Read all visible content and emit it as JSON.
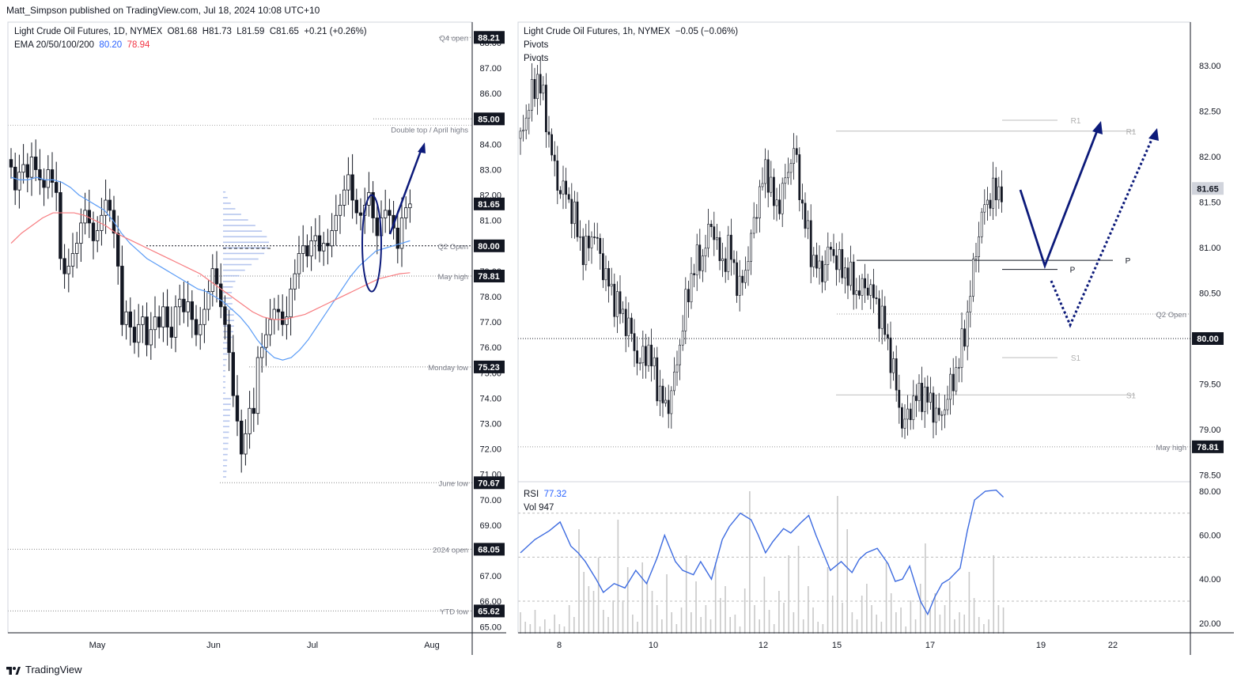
{
  "header": {
    "publisher_line": "Matt_Simpson published on TradingView.com, Jul 18, 2024 10:08 UTC+10"
  },
  "footer": {
    "brand": "TradingView"
  },
  "colors": {
    "up": "#131722",
    "down": "#131722",
    "ema20": "#5b9cf6",
    "ema50": "#f77c80",
    "annotation": "#0c1a7a",
    "rsi": "#3d6be0",
    "volume": "#c8c8c8",
    "volume_profile": "#9db3e8",
    "label_bg": "#131722"
  },
  "chart_data": [
    {
      "type": "candlestick",
      "title": "Light Crude Oil Futures, 1D, NYMEX",
      "ohlc_text": {
        "o": "O81.68",
        "h": "H81.73",
        "l": "L81.59",
        "c": "C81.65",
        "chg": "+0.21 (+0.26%)"
      },
      "indicator_text": {
        "name": "EMA 20/50/100/200",
        "ema20": "80.20",
        "ema50": "78.94"
      },
      "x_ticks": [
        "May",
        "Jun",
        "Jul",
        "Aug"
      ],
      "y_ticks": [
        "88.00",
        "87.00",
        "86.00",
        "85.00",
        "84.00",
        "83.00",
        "82.00",
        "81.00",
        "80.00",
        "79.00",
        "78.00",
        "77.00",
        "76.00",
        "75.00",
        "74.00",
        "73.00",
        "72.00",
        "71.00",
        "70.00",
        "69.00",
        "68.00",
        "67.00",
        "66.00",
        "65.00"
      ],
      "ylim": [
        64.7,
        88.8
      ],
      "close": [
        83.1,
        82.2,
        82.9,
        83.2,
        82.7,
        83.5,
        83.0,
        82.6,
        82.3,
        83.0,
        82.5,
        82.1,
        79.5,
        78.9,
        79.2,
        79.7,
        80.1,
        80.9,
        81.4,
        80.9,
        80.2,
        80.6,
        81.2,
        81.8,
        81.4,
        80.5,
        79.2,
        76.9,
        77.4,
        76.8,
        76.2,
        76.9,
        77.2,
        76.1,
        76.7,
        77.2,
        76.8,
        77.6,
        76.8,
        76.4,
        77.6,
        77.9,
        77.4,
        77.8,
        77.1,
        76.5,
        76.9,
        77.5,
        78.2,
        79.1,
        78.5,
        77.6,
        76.9,
        75.8,
        74.1,
        73.1,
        71.8,
        72.6,
        73.6,
        73.4,
        75.6,
        76.0,
        76.5,
        77.1,
        77.5,
        77.4,
        76.9,
        77.2,
        78.3,
        78.9,
        79.7,
        80.0,
        79.6,
        80.2,
        80.4,
        79.8,
        80.1,
        80.0,
        80.6,
        81.2,
        81.6,
        82.2,
        82.8,
        81.8,
        81.3,
        81.2,
        81.6,
        82.1,
        81.1,
        80.4,
        81.1,
        81.4,
        81.2,
        80.7,
        79.9,
        81.1,
        81.5,
        81.65
      ],
      "ema20": [
        82.7,
        82.6,
        82.6,
        82.7,
        82.6,
        82.6,
        82.5,
        82.3,
        82.0,
        81.8,
        81.6,
        81.4,
        81.0,
        80.5,
        80.1,
        79.8,
        79.5,
        79.3,
        79.1,
        78.9,
        78.7,
        78.5,
        78.3,
        78.2,
        78.0,
        77.8,
        77.5,
        77.2,
        76.8,
        76.3,
        75.9,
        75.6,
        75.5,
        75.6,
        75.9,
        76.3,
        76.8,
        77.3,
        77.8,
        78.3,
        78.8,
        79.2,
        79.5,
        79.8,
        79.9,
        80.0,
        80.1,
        80.2
      ],
      "ema50": [
        80.1,
        80.5,
        80.8,
        81.1,
        81.3,
        81.3,
        81.3,
        81.2,
        81.0,
        80.8,
        80.5,
        80.3,
        80.1,
        79.9,
        79.7,
        79.5,
        79.3,
        79.1,
        78.9,
        78.6,
        78.3,
        78.0,
        77.7,
        77.4,
        77.2,
        77.1,
        77.1,
        77.2,
        77.3,
        77.5,
        77.7,
        77.9,
        78.1,
        78.3,
        78.5,
        78.7,
        78.8,
        78.9,
        78.94
      ],
      "levels": [
        {
          "label": "Q4 open",
          "value": "88.21"
        },
        {
          "label": "Double top / April highs",
          "value": "85.00"
        },
        {
          "label": "",
          "value": "81.65"
        },
        {
          "label": "Q2 Open",
          "value": "80.00"
        },
        {
          "label": "May high",
          "value": "78.81"
        },
        {
          "label": "Monday low",
          "value": "75.23"
        },
        {
          "label": "June low",
          "value": "70.67"
        },
        {
          "label": "2024 open",
          "value": "68.05"
        },
        {
          "label": "YTD low",
          "value": "65.62"
        }
      ]
    },
    {
      "type": "candlestick",
      "title": "Light Crude Oil Futures, 1h, NYMEX",
      "change_text": "−0.05 (−0.06%)",
      "indicator_labels": [
        "Pivots",
        "Pivots"
      ],
      "x_ticks": [
        "8",
        "10",
        "12",
        "15",
        "17",
        "19",
        "22"
      ],
      "y_ticks": [
        "83.00",
        "82.50",
        "82.00",
        "81.50",
        "81.00",
        "80.50",
        "80.00",
        "79.50",
        "79.00",
        "78.50"
      ],
      "ylim": [
        78.45,
        83.5
      ],
      "path": [
        [
          0,
          82.2
        ],
        [
          4,
          82.6
        ],
        [
          8,
          82.9
        ],
        [
          12,
          82.3
        ],
        [
          16,
          81.7
        ],
        [
          20,
          81.6
        ],
        [
          24,
          81.3
        ],
        [
          28,
          80.9
        ],
        [
          32,
          81.2
        ],
        [
          36,
          80.8
        ],
        [
          40,
          80.5
        ],
        [
          44,
          80.3
        ],
        [
          48,
          80.1
        ],
        [
          52,
          79.7
        ],
        [
          56,
          79.9
        ],
        [
          60,
          79.5
        ],
        [
          64,
          79.2
        ],
        [
          68,
          79.6
        ],
        [
          72,
          80.3
        ],
        [
          76,
          80.8
        ],
        [
          80,
          80.9
        ],
        [
          84,
          81.3
        ],
        [
          88,
          80.8
        ],
        [
          92,
          81.0
        ],
        [
          96,
          80.5
        ],
        [
          100,
          80.9
        ],
        [
          104,
          81.5
        ],
        [
          108,
          81.9
        ],
        [
          112,
          81.4
        ],
        [
          116,
          81.7
        ],
        [
          120,
          82.1
        ],
        [
          124,
          81.4
        ],
        [
          128,
          80.9
        ],
        [
          132,
          80.7
        ],
        [
          136,
          81.0
        ],
        [
          140,
          80.8
        ],
        [
          144,
          80.7
        ],
        [
          148,
          80.5
        ],
        [
          152,
          80.6
        ],
        [
          156,
          80.4
        ],
        [
          160,
          80.1
        ],
        [
          164,
          79.6
        ],
        [
          168,
          79.0
        ],
        [
          172,
          79.3
        ],
        [
          176,
          79.4
        ],
        [
          180,
          79.3
        ],
        [
          184,
          79.1
        ],
        [
          188,
          79.4
        ],
        [
          192,
          79.7
        ],
        [
          196,
          80.2
        ],
        [
          200,
          81.0
        ],
        [
          204,
          81.5
        ],
        [
          208,
          81.6
        ],
        [
          212,
          81.65
        ]
      ],
      "pivots": [
        {
          "label": "R1",
          "value": 82.4
        },
        {
          "label": "R1",
          "value": 82.28
        },
        {
          "label": "P",
          "value": 80.86
        },
        {
          "label": "P",
          "value": 80.76
        },
        {
          "label": "S1",
          "value": 79.79
        },
        {
          "label": "S1",
          "value": 79.38
        }
      ],
      "levels": [
        {
          "label": "",
          "value": "81.65"
        },
        {
          "label": "Q2 Open",
          "value": "80.00"
        },
        {
          "label": "May high",
          "value": "78.81"
        }
      ]
    },
    {
      "type": "line",
      "title": "RSI",
      "rsi_text": "77.32",
      "vol_text": "Vol  947",
      "y_ticks": [
        "80.00",
        "60.00",
        "40.00",
        "20.00"
      ],
      "ylim": [
        15,
        82
      ],
      "rsi": [
        [
          0,
          52
        ],
        [
          8,
          58
        ],
        [
          16,
          62
        ],
        [
          22,
          66
        ],
        [
          28,
          55
        ],
        [
          32,
          52
        ],
        [
          36,
          48
        ],
        [
          42,
          40
        ],
        [
          46,
          34
        ],
        [
          52,
          38
        ],
        [
          58,
          36
        ],
        [
          64,
          44
        ],
        [
          70,
          38
        ],
        [
          76,
          50
        ],
        [
          80,
          60
        ],
        [
          86,
          48
        ],
        [
          90,
          44
        ],
        [
          96,
          42
        ],
        [
          100,
          48
        ],
        [
          106,
          40
        ],
        [
          112,
          58
        ],
        [
          116,
          64
        ],
        [
          122,
          70
        ],
        [
          128,
          67
        ],
        [
          132,
          60
        ],
        [
          136,
          52
        ],
        [
          140,
          57
        ],
        [
          146,
          63
        ],
        [
          150,
          61
        ],
        [
          156,
          66
        ],
        [
          160,
          69
        ],
        [
          164,
          60
        ],
        [
          168,
          52
        ],
        [
          172,
          44
        ],
        [
          178,
          48
        ],
        [
          184,
          43
        ],
        [
          188,
          49
        ],
        [
          192,
          52
        ],
        [
          198,
          54
        ],
        [
          204,
          47
        ],
        [
          208,
          39
        ],
        [
          212,
          40
        ],
        [
          216,
          46
        ],
        [
          222,
          30
        ],
        [
          226,
          24
        ],
        [
          230,
          32
        ],
        [
          234,
          38
        ],
        [
          238,
          40
        ],
        [
          244,
          45
        ],
        [
          248,
          62
        ],
        [
          252,
          76
        ],
        [
          258,
          80
        ],
        [
          264,
          80.5
        ],
        [
          268,
          77.32
        ]
      ],
      "volume": [
        9,
        5,
        4,
        10,
        3,
        6,
        2,
        8,
        4,
        3,
        12,
        7,
        44,
        26,
        20,
        18,
        32,
        10,
        7,
        14,
        48,
        14,
        28,
        8,
        5,
        30,
        22,
        18,
        12,
        6,
        25,
        9,
        4,
        11,
        33,
        9,
        22,
        7,
        12,
        6,
        30,
        15,
        20,
        7,
        8,
        3,
        19,
        60,
        12,
        6,
        24,
        10,
        4,
        18,
        13,
        33,
        9,
        37,
        6,
        20,
        11,
        5,
        4,
        28,
        16,
        58,
        13,
        44,
        9,
        6,
        16,
        21,
        12,
        8,
        5,
        30,
        17,
        9,
        11,
        3,
        14,
        6,
        21,
        38,
        11,
        17,
        8,
        12,
        22,
        6,
        9,
        8,
        26,
        15,
        7,
        4,
        6,
        33,
        12,
        11
      ]
    }
  ]
}
